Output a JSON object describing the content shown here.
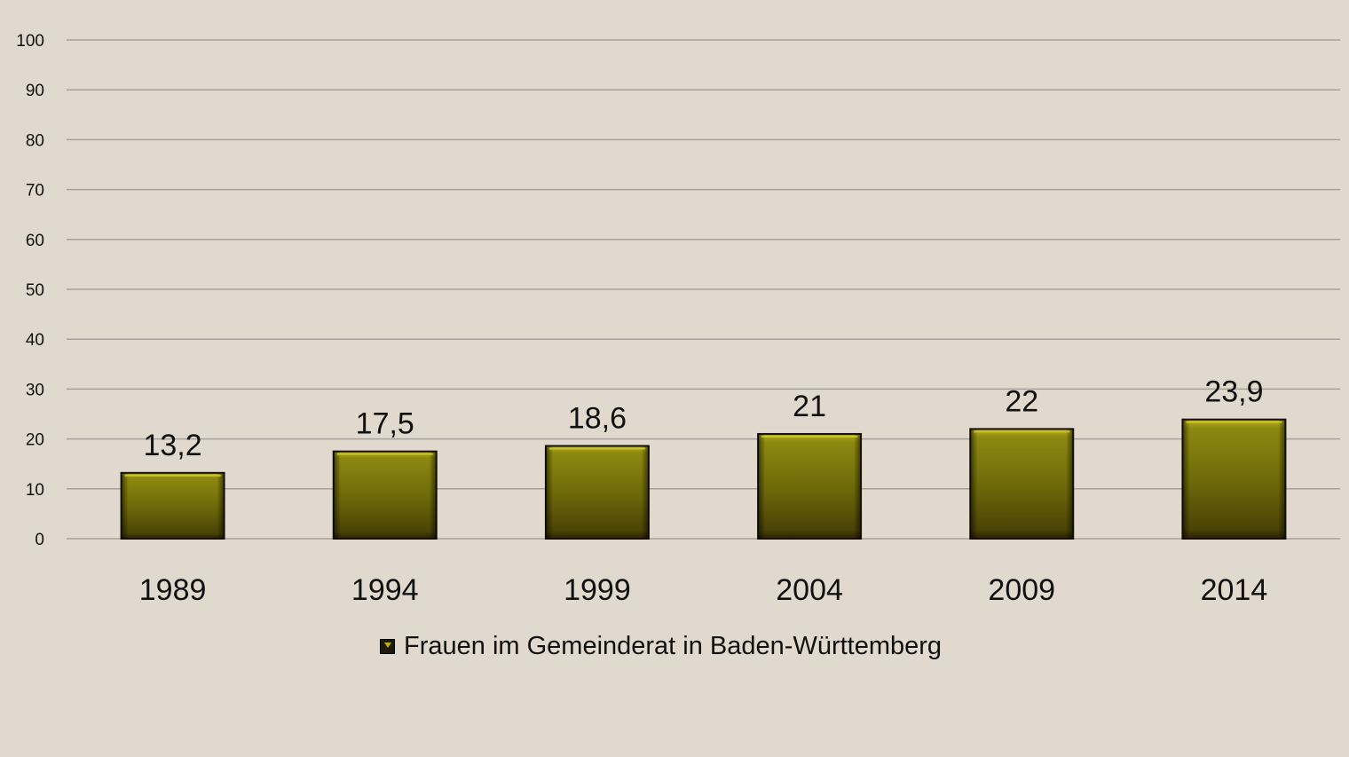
{
  "chart_data": {
    "type": "bar",
    "categories": [
      "1989",
      "1994",
      "1999",
      "2004",
      "2009",
      "2014"
    ],
    "series": [
      {
        "name": "Frauen im Gemeinderat in Baden-Württemberg",
        "values": [
          13.2,
          17.5,
          18.6,
          21,
          22,
          23.9
        ],
        "data_labels": [
          "13,2",
          "17,5",
          "18,6",
          "21",
          "22",
          "23,9"
        ]
      }
    ],
    "yticks": [
      "0",
      "10",
      "20",
      "30",
      "40",
      "50",
      "60",
      "70",
      "80",
      "90",
      "100"
    ],
    "ylim": [
      0,
      100
    ],
    "grid": true,
    "legend_position": "bottom",
    "colors": {
      "background": "#e1d9ce",
      "gridline": "#a8a09a",
      "bar_light": "#9a9612",
      "bar_mid": "#6e6b08",
      "bar_dark": "#2a2306",
      "bar_edge": "#1a1204"
    }
  }
}
